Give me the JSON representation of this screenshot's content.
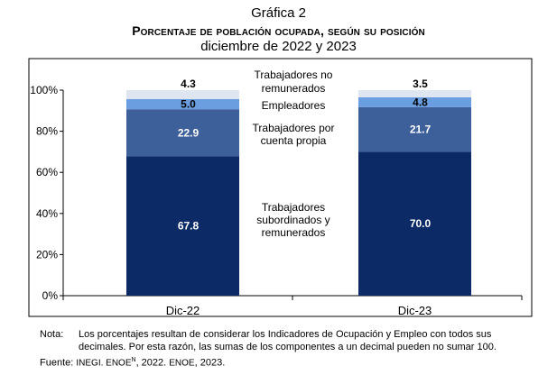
{
  "header": {
    "label": "Gráfica 2",
    "title": "Porcentaje de población ocupada, según su posición",
    "subtitle": "diciembre de 2022 y 2023"
  },
  "chart_data": {
    "type": "bar",
    "stacked": true,
    "categories": [
      "Dic-22",
      "Dic-23"
    ],
    "series": [
      {
        "name": "Trabajadores subordinados y remunerados",
        "values": [
          67.8,
          70.0
        ],
        "color": "#0b2a66"
      },
      {
        "name": "Trabajadores por cuenta propia",
        "values": [
          22.9,
          21.7
        ],
        "color": "#3d5f9a"
      },
      {
        "name": "Empleadores",
        "values": [
          5.0,
          4.8
        ],
        "color": "#6a9ee0"
      },
      {
        "name": "Trabajadores no remunerados",
        "values": [
          4.3,
          3.5
        ],
        "color": "#dfe6f1"
      }
    ],
    "yticks": [
      "0%",
      "20%",
      "40%",
      "60%",
      "80%",
      "100%"
    ],
    "ylim": [
      0,
      100
    ],
    "grid": false,
    "legend": "center"
  },
  "note": {
    "label": "Nota:",
    "text": "Los porcentajes resultan de considerar los Indicadores de Ocupación y Empleo con todos sus decimales. Por esta razón, las sumas de los componentes a un decimal pueden no sumar 100."
  },
  "source": {
    "label": "Fuente:",
    "part1": "INEGI. ENOE",
    "sup": "N",
    "part2": ", 2022. ",
    "part3": "ENOE",
    "part4": ", 2023."
  }
}
